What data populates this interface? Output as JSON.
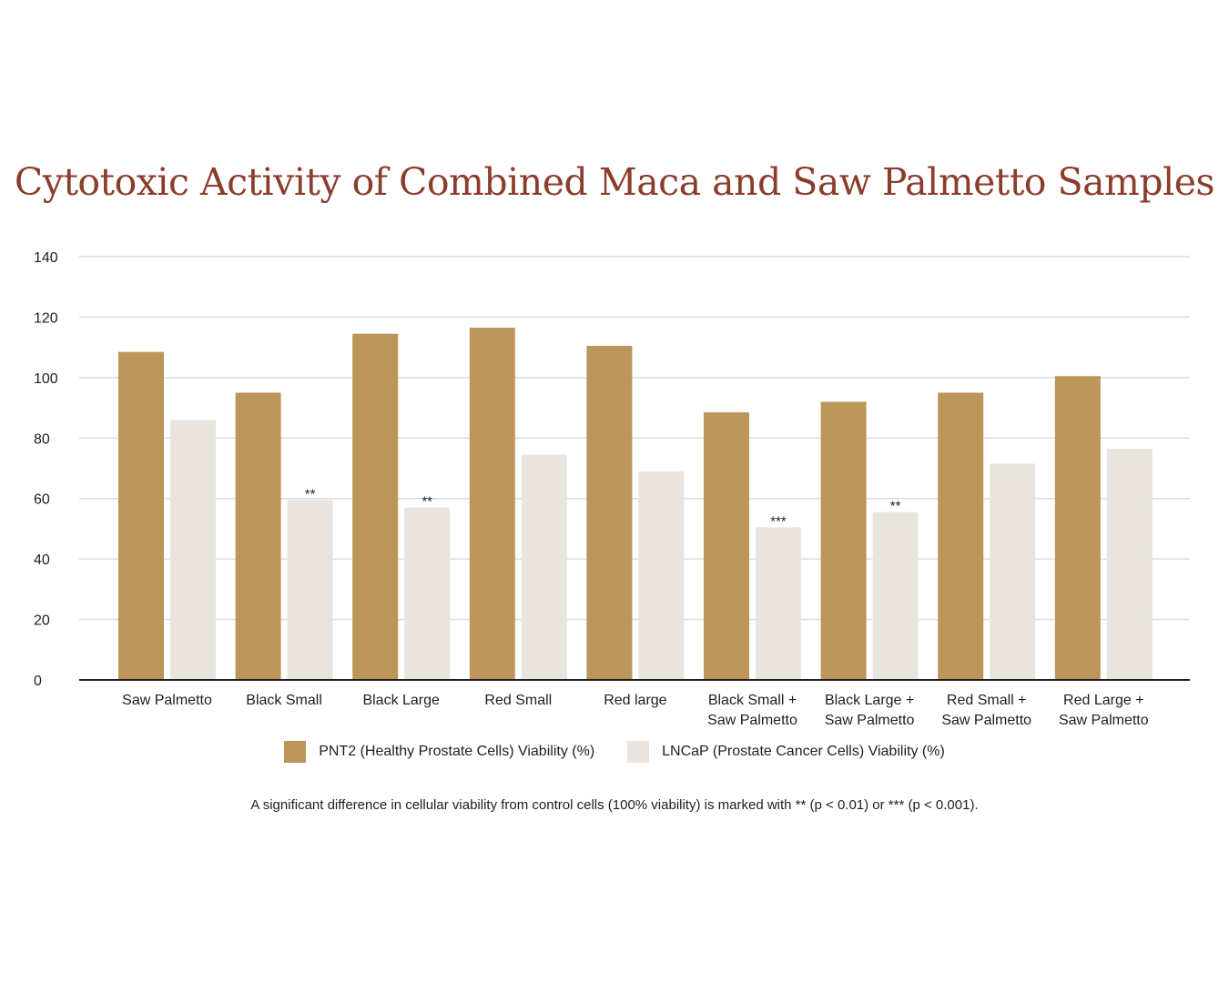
{
  "chart_data": {
    "type": "bar",
    "title": "Cytotoxic Activity of Combined Maca and Saw Palmetto Samples",
    "xlabel": "",
    "ylabel": "",
    "ylim": [
      0,
      140
    ],
    "yticks": [
      0,
      20,
      40,
      60,
      80,
      100,
      120,
      140
    ],
    "grid": true,
    "legend_position": "bottom",
    "categories": [
      [
        "Saw Palmetto"
      ],
      [
        "Black Small"
      ],
      [
        "Black Large"
      ],
      [
        "Red Small"
      ],
      [
        "Red large"
      ],
      [
        "Black Small +",
        "Saw Palmetto"
      ],
      [
        "Black Large +",
        "Saw Palmetto"
      ],
      [
        "Red Small +",
        "Saw Palmetto"
      ],
      [
        "Red Large +",
        "Saw Palmetto"
      ]
    ],
    "series": [
      {
        "name": "PNT2 (Healthy Prostate Cells) Viability (%)",
        "color": "#bb9559",
        "values": [
          108.5,
          95,
          114.5,
          116.5,
          110.5,
          88.5,
          92,
          95,
          100.5
        ],
        "significance": [
          "",
          "",
          "",
          "",
          "",
          "",
          "",
          "",
          ""
        ]
      },
      {
        "name": "LNCaP (Prostate Cancer Cells) Viability (%)",
        "color": "#e9e5de",
        "values": [
          86,
          59.5,
          57,
          74.5,
          69,
          50.5,
          55.5,
          71.5,
          76.5
        ],
        "significance": [
          "",
          "**",
          "**",
          "",
          "",
          "***",
          "**",
          "",
          ""
        ]
      }
    ],
    "footnote": "A significant difference in cellular viability from control cells (100% viability) is marked with ** (p < 0.01) or *** (p < 0.001)."
  },
  "colors": {
    "title": "#8b3d2c",
    "grid": "#dcdcdc",
    "axis": "#1e1e1e"
  }
}
